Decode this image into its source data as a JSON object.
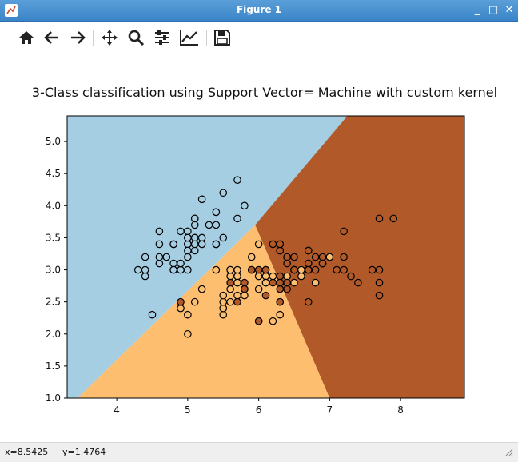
{
  "window": {
    "title": "Figure 1"
  },
  "window_buttons": {
    "minimize": "_",
    "maximize": "□",
    "close": "✕"
  },
  "toolbar": {
    "items": [
      "home-icon",
      "back-icon",
      "forward-icon",
      "pan-icon",
      "zoom-icon",
      "configure-subplots-icon",
      "edit-axis-icon",
      "save-icon"
    ]
  },
  "status": {
    "x": "x=8.5425",
    "y": "y=1.4764"
  },
  "colors": {
    "region_0": "#a6cee3",
    "region_1": "#fdbf6f",
    "region_2": "#b15928"
  },
  "chart_data": {
    "type": "scatter",
    "title": "3-Class classification using Support Vector= Machine with custom kernel",
    "xlabel": "",
    "ylabel": "",
    "xlim": [
      3.3,
      8.9
    ],
    "ylim": [
      1.0,
      5.4
    ],
    "xticks": [
      "4",
      "5",
      "6",
      "7",
      "8"
    ],
    "yticks": [
      "1.0",
      "1.5",
      "2.0",
      "2.5",
      "3.0",
      "3.5",
      "4.0",
      "4.5",
      "5.0"
    ],
    "regions": [
      {
        "class": 0,
        "color": "#a6cee3"
      },
      {
        "class": 1,
        "color": "#fdbf6f"
      },
      {
        "class": 2,
        "color": "#b15928"
      }
    ],
    "boundaries": {
      "class0_class1": [
        [
          3.45,
          1.0
        ],
        [
          5.95,
          3.7
        ]
      ],
      "class0_class2": [
        [
          5.95,
          3.7
        ],
        [
          7.25,
          5.4
        ]
      ],
      "class1_class2": [
        [
          5.95,
          3.7
        ],
        [
          7.0,
          1.0
        ]
      ]
    },
    "series": [
      {
        "class": 0,
        "color": "#a6cee3",
        "points": [
          [
            5.1,
            3.5
          ],
          [
            4.9,
            3.0
          ],
          [
            4.7,
            3.2
          ],
          [
            4.6,
            3.1
          ],
          [
            5.0,
            3.6
          ],
          [
            5.4,
            3.9
          ],
          [
            4.6,
            3.4
          ],
          [
            5.0,
            3.4
          ],
          [
            4.4,
            2.9
          ],
          [
            4.9,
            3.1
          ],
          [
            5.4,
            3.7
          ],
          [
            4.8,
            3.4
          ],
          [
            4.8,
            3.0
          ],
          [
            4.3,
            3.0
          ],
          [
            5.8,
            4.0
          ],
          [
            5.7,
            4.4
          ],
          [
            5.4,
            3.9
          ],
          [
            5.1,
            3.5
          ],
          [
            5.7,
            3.8
          ],
          [
            5.1,
            3.8
          ],
          [
            5.4,
            3.4
          ],
          [
            5.1,
            3.7
          ],
          [
            4.6,
            3.6
          ],
          [
            5.1,
            3.3
          ],
          [
            4.8,
            3.4
          ],
          [
            5.0,
            3.0
          ],
          [
            5.0,
            3.4
          ],
          [
            5.2,
            3.5
          ],
          [
            5.2,
            3.4
          ],
          [
            4.7,
            3.2
          ],
          [
            4.8,
            3.1
          ],
          [
            5.4,
            3.4
          ],
          [
            5.2,
            4.1
          ],
          [
            5.5,
            4.2
          ],
          [
            4.9,
            3.1
          ],
          [
            5.0,
            3.2
          ],
          [
            5.5,
            3.5
          ],
          [
            4.9,
            3.6
          ],
          [
            4.4,
            3.0
          ],
          [
            5.1,
            3.4
          ],
          [
            5.0,
            3.5
          ],
          [
            4.5,
            2.3
          ],
          [
            4.4,
            3.2
          ],
          [
            5.0,
            3.5
          ],
          [
            5.1,
            3.8
          ],
          [
            4.8,
            3.0
          ],
          [
            5.1,
            3.8
          ],
          [
            4.6,
            3.2
          ],
          [
            5.3,
            3.7
          ],
          [
            5.0,
            3.3
          ]
        ]
      },
      {
        "class": 1,
        "color": "#fdbf6f",
        "points": [
          [
            7.0,
            3.2
          ],
          [
            6.4,
            3.2
          ],
          [
            6.9,
            3.1
          ],
          [
            5.5,
            2.3
          ],
          [
            6.5,
            2.8
          ],
          [
            5.7,
            2.8
          ],
          [
            6.3,
            3.3
          ],
          [
            4.9,
            2.4
          ],
          [
            6.6,
            2.9
          ],
          [
            5.2,
            2.7
          ],
          [
            5.0,
            2.0
          ],
          [
            5.9,
            3.0
          ],
          [
            6.0,
            2.2
          ],
          [
            6.1,
            2.9
          ],
          [
            5.6,
            2.9
          ],
          [
            6.7,
            3.1
          ],
          [
            5.6,
            3.0
          ],
          [
            5.8,
            2.7
          ],
          [
            6.2,
            2.2
          ],
          [
            5.6,
            2.5
          ],
          [
            5.9,
            3.2
          ],
          [
            6.1,
            2.8
          ],
          [
            6.3,
            2.5
          ],
          [
            6.1,
            2.8
          ],
          [
            6.4,
            2.9
          ],
          [
            6.6,
            3.0
          ],
          [
            6.8,
            2.8
          ],
          [
            6.7,
            3.0
          ],
          [
            6.0,
            2.9
          ],
          [
            5.7,
            2.6
          ],
          [
            5.5,
            2.4
          ],
          [
            5.5,
            2.4
          ],
          [
            5.8,
            2.7
          ],
          [
            6.0,
            2.7
          ],
          [
            5.4,
            3.0
          ],
          [
            6.0,
            3.4
          ],
          [
            6.7,
            3.1
          ],
          [
            6.3,
            2.3
          ],
          [
            5.6,
            3.0
          ],
          [
            5.5,
            2.5
          ],
          [
            5.5,
            2.6
          ],
          [
            6.1,
            3.0
          ],
          [
            5.8,
            2.6
          ],
          [
            5.0,
            2.3
          ],
          [
            5.6,
            2.7
          ],
          [
            5.7,
            3.0
          ],
          [
            5.7,
            2.9
          ],
          [
            6.2,
            2.9
          ],
          [
            5.1,
            2.5
          ],
          [
            5.7,
            2.8
          ]
        ]
      },
      {
        "class": 2,
        "color": "#b15928",
        "points": [
          [
            6.3,
            3.3
          ],
          [
            5.8,
            2.7
          ],
          [
            7.1,
            3.0
          ],
          [
            6.3,
            2.9
          ],
          [
            6.5,
            3.0
          ],
          [
            7.6,
            3.0
          ],
          [
            4.9,
            2.5
          ],
          [
            7.3,
            2.9
          ],
          [
            6.7,
            2.5
          ],
          [
            7.2,
            3.6
          ],
          [
            6.5,
            3.2
          ],
          [
            6.4,
            2.7
          ],
          [
            6.8,
            3.0
          ],
          [
            5.7,
            2.5
          ],
          [
            5.8,
            2.8
          ],
          [
            6.4,
            3.2
          ],
          [
            6.5,
            3.0
          ],
          [
            7.7,
            3.8
          ],
          [
            7.7,
            2.6
          ],
          [
            6.0,
            2.2
          ],
          [
            6.9,
            3.2
          ],
          [
            5.6,
            2.8
          ],
          [
            7.7,
            2.8
          ],
          [
            6.3,
            2.7
          ],
          [
            6.7,
            3.3
          ],
          [
            7.2,
            3.2
          ],
          [
            6.2,
            2.8
          ],
          [
            6.1,
            3.0
          ],
          [
            6.4,
            2.8
          ],
          [
            7.2,
            3.0
          ],
          [
            7.4,
            2.8
          ],
          [
            7.9,
            3.8
          ],
          [
            6.4,
            2.8
          ],
          [
            6.3,
            2.8
          ],
          [
            6.1,
            2.6
          ],
          [
            7.7,
            3.0
          ],
          [
            6.3,
            3.4
          ],
          [
            6.4,
            3.1
          ],
          [
            6.0,
            3.0
          ],
          [
            6.9,
            3.1
          ],
          [
            6.7,
            3.1
          ],
          [
            6.9,
            3.1
          ],
          [
            5.8,
            2.7
          ],
          [
            6.8,
            3.2
          ],
          [
            6.7,
            3.3
          ],
          [
            6.7,
            3.0
          ],
          [
            6.3,
            2.5
          ],
          [
            6.5,
            3.0
          ],
          [
            6.2,
            3.4
          ],
          [
            5.9,
            3.0
          ]
        ]
      }
    ]
  }
}
